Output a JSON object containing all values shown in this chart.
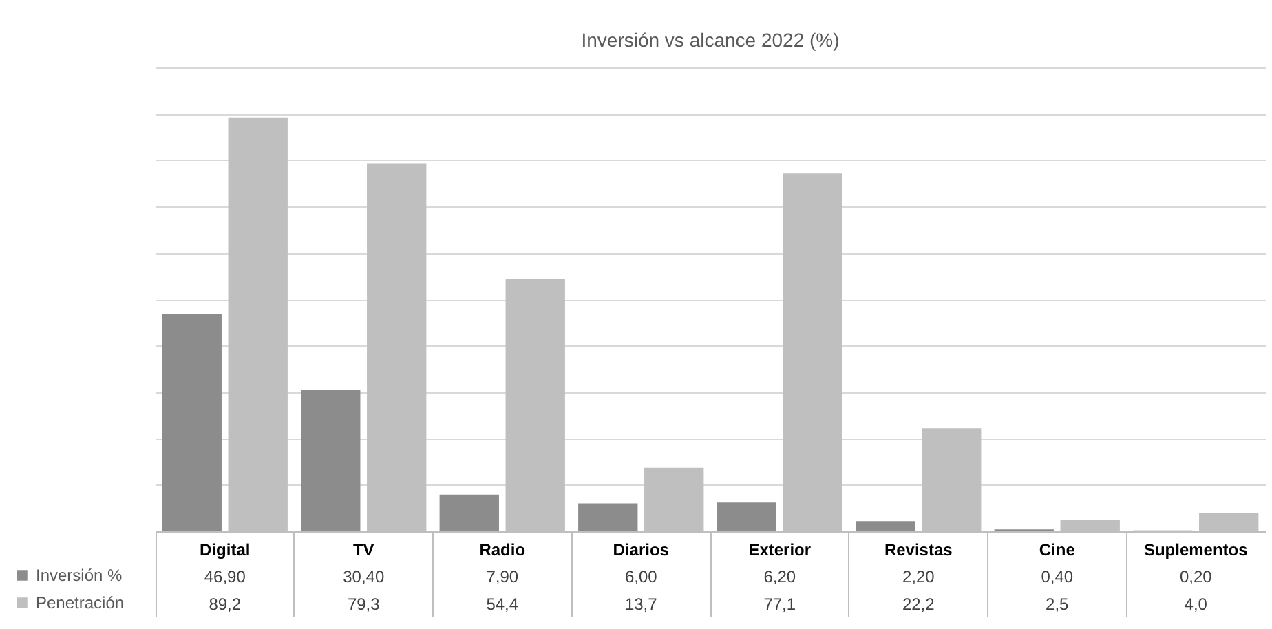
{
  "chart_data": {
    "type": "bar",
    "title": "Inversión vs alcance 2022 (%)",
    "categories": [
      "Digital",
      "TV",
      "Radio",
      "Diarios",
      "Exterior",
      "Revistas",
      "Cine",
      "Suplementos"
    ],
    "series": [
      {
        "name": "Inversión %",
        "color": "#8c8c8c",
        "values": [
          46.9,
          30.4,
          7.9,
          6.0,
          6.2,
          2.2,
          0.4,
          0.2
        ],
        "value_labels": [
          "46,90",
          "30,40",
          "7,90",
          "6,00",
          "6,20",
          "2,20",
          "0,40",
          "0,20"
        ]
      },
      {
        "name": "Penetración",
        "color": "#bfbfbf",
        "values": [
          89.2,
          79.3,
          54.4,
          13.7,
          77.1,
          22.2,
          2.5,
          4.0
        ],
        "value_labels": [
          "89,2",
          "79,3",
          "54,4",
          "13,7",
          "77,1",
          "22,2",
          "2,5",
          "4,0"
        ]
      }
    ],
    "ylim": [
      0,
      100
    ],
    "yticks": [
      {
        "value": 0,
        "label": null
      },
      {
        "value": 10,
        "label": null
      },
      {
        "value": 20,
        "label": null
      },
      {
        "value": 30,
        "label": null
      },
      {
        "value": 40,
        "label": null
      },
      {
        "value": 50,
        "label": null
      },
      {
        "value": 60,
        "label": null
      },
      {
        "value": 70,
        "label": null
      },
      {
        "value": 80,
        "label": null
      },
      {
        "value": 90,
        "label": null
      },
      {
        "value": 100,
        "label": null
      }
    ],
    "grid": "y",
    "tick_labels": "x",
    "legend": "bottom left"
  }
}
